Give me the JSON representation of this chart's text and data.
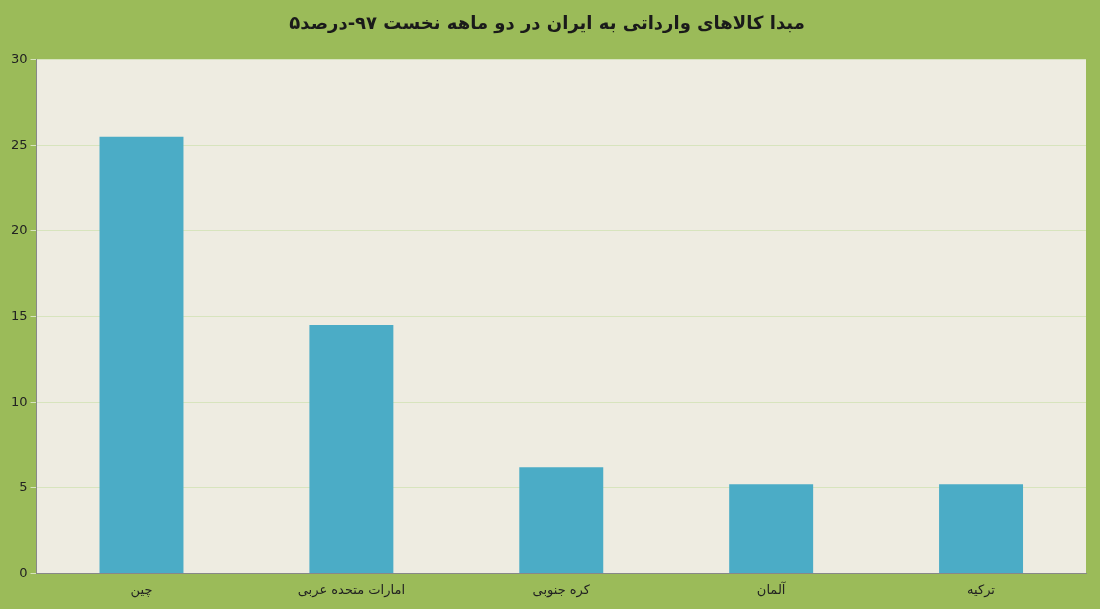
{
  "chart_data": {
    "type": "bar",
    "title": "۵مبدا کالاهای وارداتی به ایران در دو ماهه نخست ۹۷-درصد",
    "categories": [
      "چین",
      "امارات متحده عربی",
      "کره جنوبی",
      "آلمان",
      "ترکیه"
    ],
    "values": [
      25.5,
      14.5,
      6.2,
      5.2,
      5.2
    ],
    "color": "#4bacc6",
    "ylim": [
      0,
      30
    ],
    "yticks": [
      0,
      5,
      10,
      15,
      20,
      25,
      30
    ],
    "grid": "y"
  }
}
